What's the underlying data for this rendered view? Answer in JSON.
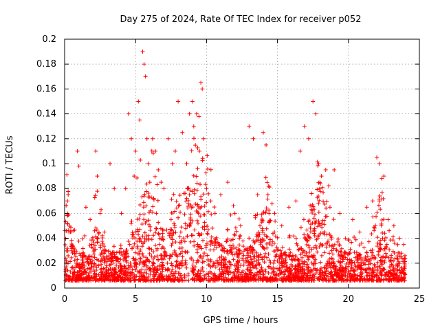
{
  "chart_data": {
    "type": "scatter",
    "title": "Day 275 of 2024, Rate Of TEC Index for receiver p052",
    "xlabel": "GPS time / hours",
    "ylabel": "ROTI / TECUs",
    "xlim": [
      0,
      25
    ],
    "ylim": [
      0,
      0.2
    ],
    "xticks": [
      0,
      5,
      10,
      15,
      20,
      25
    ],
    "yticks": [
      0,
      0.02,
      0.04,
      0.06,
      0.08,
      0.1,
      0.12,
      0.14,
      0.16,
      0.18,
      0.2
    ],
    "xtick_labels": [
      "0",
      "5",
      "10",
      "15",
      "20",
      "25"
    ],
    "ytick_labels": [
      "0",
      "0.02",
      "0.04",
      "0.06",
      "0.08",
      "0.1",
      "0.12",
      "0.14",
      "0.16",
      "0.18",
      "0.2"
    ],
    "grid": true,
    "marker": "plus",
    "marker_color": "#ff0000",
    "x_range_of_data": [
      0,
      24
    ],
    "series": [
      {
        "x": [
          0.1,
          0.2,
          0.25,
          0.3,
          0.5,
          0.9,
          1.0,
          1.5,
          1.8,
          2.2,
          2.3,
          2.5,
          2.8,
          3.2,
          3.5,
          4.0,
          4.3,
          4.5,
          4.7,
          4.9,
          5.0,
          5.2,
          5.3,
          5.5,
          5.6,
          5.7,
          5.8,
          5.9,
          6.0,
          6.2,
          6.4,
          6.6,
          6.8,
          7.0,
          7.3,
          7.6,
          7.8,
          8.0,
          8.3,
          8.6,
          8.8,
          9.0,
          9.1,
          9.3,
          9.5,
          9.6,
          9.7,
          9.8,
          10.0,
          10.3,
          10.6,
          11.0,
          11.5,
          12.0,
          12.4,
          13.0,
          13.3,
          13.6,
          14.0,
          14.2,
          14.4,
          14.8,
          15.3,
          15.8,
          16.3,
          16.6,
          16.9,
          17.2,
          17.5,
          17.7,
          17.9,
          18.1,
          18.4,
          18.7,
          19.0,
          19.4,
          19.8,
          20.3,
          20.8,
          21.3,
          21.7,
          22.0,
          22.2,
          22.5,
          22.8,
          23.2,
          23.6,
          23.9
        ],
        "y": [
          0.02,
          0.07,
          0.075,
          0.045,
          0.03,
          0.11,
          0.098,
          0.065,
          0.055,
          0.11,
          0.09,
          0.06,
          0.045,
          0.1,
          0.08,
          0.06,
          0.08,
          0.14,
          0.12,
          0.09,
          0.11,
          0.15,
          0.135,
          0.19,
          0.18,
          0.17,
          0.12,
          0.1,
          0.085,
          0.12,
          0.11,
          0.095,
          0.085,
          0.08,
          0.12,
          0.1,
          0.11,
          0.15,
          0.125,
          0.1,
          0.14,
          0.15,
          0.13,
          0.14,
          0.11,
          0.165,
          0.16,
          0.12,
          0.08,
          0.07,
          0.06,
          0.075,
          0.085,
          0.06,
          0.05,
          0.13,
          0.12,
          0.075,
          0.125,
          0.115,
          0.06,
          0.06,
          0.05,
          0.065,
          0.07,
          0.11,
          0.13,
          0.12,
          0.15,
          0.14,
          0.1,
          0.09,
          0.095,
          0.065,
          0.095,
          0.06,
          0.04,
          0.055,
          0.045,
          0.065,
          0.07,
          0.105,
          0.1,
          0.09,
          0.055,
          0.05,
          0.04,
          0.035
        ]
      }
    ]
  }
}
